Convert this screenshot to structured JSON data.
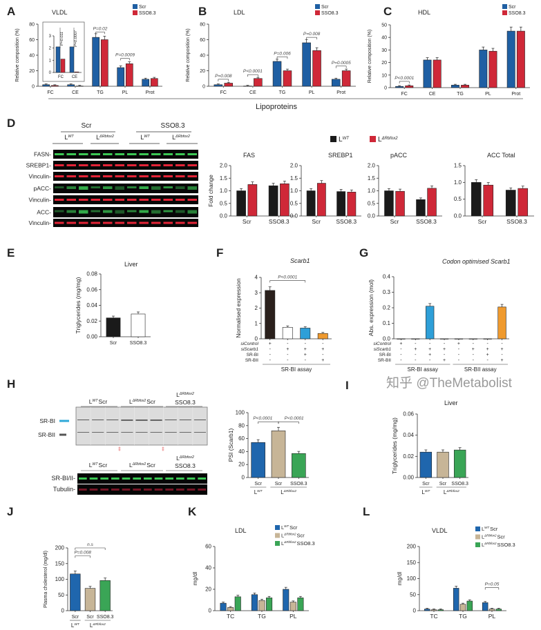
{
  "panel_letters": [
    "A",
    "B",
    "C",
    "D",
    "E",
    "F",
    "G",
    "H",
    "I",
    "J",
    "K",
    "L"
  ],
  "shared_xlabel": "Lipoproteins",
  "watermark": "知乎 @TheMetabolist",
  "colors": {
    "scr_blue": "#1f5fa3",
    "sso_red": "#cf2838",
    "black": "#1a1a1a",
    "white": "#ffffff",
    "tan": "#c7b597",
    "green": "#3aa556",
    "orange": "#ef9a2e",
    "light_blue": "#2e9fd8",
    "dark_brown": "#2a201c"
  },
  "chart_data": [
    {
      "id": "A",
      "type": "bar",
      "title": "VLDL",
      "ylabel": "Relative composition (%)",
      "ylim": [
        0,
        80
      ],
      "yticks": [
        0,
        20,
        40,
        60,
        80
      ],
      "categories": [
        "FC",
        "CE",
        "TG",
        "PL",
        "Prot"
      ],
      "series": [
        {
          "name": "Scr",
          "color": "#1f5fa3",
          "values": [
            2,
            2,
            63,
            24,
            9
          ]
        },
        {
          "name": "SSO8.3",
          "color": "#cf2838",
          "values": [
            1,
            0.3,
            60,
            29,
            10
          ]
        }
      ],
      "legend": "top-right",
      "annotations": [
        {
          "text": "P=0.02",
          "cat": [
            2,
            2
          ],
          "series": [
            0,
            1
          ],
          "y": 70
        },
        {
          "text": "P=0.0009",
          "cat": [
            3,
            3
          ],
          "series": [
            0,
            1
          ],
          "y": 36
        }
      ],
      "inset": {
        "ylim": [
          0,
          3
        ],
        "yticks": [
          0,
          1,
          2,
          3
        ],
        "categories": [
          "FC",
          "CE"
        ],
        "series": [
          {
            "name": "Scr",
            "color": "#1f5fa3",
            "values": [
              2.1,
              2.1
            ]
          },
          {
            "name": "SSO8.3",
            "color": "#cf2838",
            "values": [
              1.1,
              0.05
            ]
          }
        ],
        "annotations": [
          {
            "text": "P=0.011"
          },
          {
            "text": "P=0.0007"
          }
        ]
      }
    },
    {
      "id": "B",
      "type": "bar",
      "title": "LDL",
      "ylabel": "Relative composition (%)",
      "ylim": [
        0,
        80
      ],
      "yticks": [
        0,
        20,
        40,
        60,
        80
      ],
      "categories": [
        "FC",
        "CE",
        "TG",
        "PL",
        "Prot"
      ],
      "series": [
        {
          "name": "Scr",
          "color": "#1f5fa3",
          "values": [
            2,
            0.3,
            32,
            56,
            9
          ]
        },
        {
          "name": "SSO8.3",
          "color": "#cf2838",
          "values": [
            4,
            10,
            20,
            46,
            20
          ]
        }
      ],
      "legend": "top-right",
      "annotations": [
        {
          "text": "P=0.008",
          "cat": [
            0,
            0
          ],
          "series": [
            0,
            1
          ],
          "y": 9
        },
        {
          "text": "P<0.0001",
          "cat": [
            1,
            1
          ],
          "series": [
            0,
            1
          ],
          "y": 15
        },
        {
          "text": "P=0.006",
          "cat": [
            2,
            2
          ],
          "series": [
            0,
            1
          ],
          "y": 38
        },
        {
          "text": "P=0.008",
          "cat": [
            3,
            3
          ],
          "series": [
            0,
            1
          ],
          "y": 63
        },
        {
          "text": "P=0.0005",
          "cat": [
            4,
            4
          ],
          "series": [
            0,
            1
          ],
          "y": 26
        }
      ]
    },
    {
      "id": "C",
      "type": "bar",
      "title": "HDL",
      "ylabel": "Relative composition (%)",
      "ylim": [
        0,
        50
      ],
      "yticks": [
        0,
        10,
        20,
        30,
        40,
        50
      ],
      "categories": [
        "FC",
        "CE",
        "TG",
        "PL",
        "Prot"
      ],
      "series": [
        {
          "name": "Scr",
          "color": "#1f5fa3",
          "values": [
            1,
            22,
            2,
            30,
            45
          ]
        },
        {
          "name": "SSO8.3",
          "color": "#cf2838",
          "values": [
            1.5,
            22,
            2,
            29,
            45
          ]
        }
      ],
      "legend": "top-right",
      "annotations": [
        {
          "text": "P<0.0001",
          "cat": [
            0,
            0
          ],
          "series": [
            0,
            1
          ],
          "y": 5
        }
      ]
    },
    {
      "id": "D1",
      "type": "bar",
      "title": "FAS",
      "ylabel": "Fold change",
      "ylim": [
        0,
        2
      ],
      "yticks": [
        "0.0",
        "0.5",
        "1.0",
        "1.5",
        "2.0"
      ],
      "categories": [
        "Scr",
        "SSO8.3"
      ],
      "series": [
        {
          "name": {
            "base": "L",
            "sup": "WT"
          },
          "color": "#1a1a1a",
          "values": [
            1.0,
            1.2
          ]
        },
        {
          "name": {
            "base": "L",
            "sup": "ΔRbfox2"
          },
          "color": "#cf2838",
          "values": [
            1.25,
            1.28
          ]
        }
      ]
    },
    {
      "id": "D2",
      "type": "bar",
      "title": "SREBP1",
      "ylabel": "",
      "ylim": [
        0,
        2
      ],
      "yticks": [
        "0.0",
        "0.5",
        "1.0",
        "1.5",
        "2.0"
      ],
      "categories": [
        "Scr",
        "SSO8.3"
      ],
      "series": [
        {
          "color": "#1a1a1a",
          "values": [
            1.0,
            0.97
          ]
        },
        {
          "color": "#cf2838",
          "values": [
            1.3,
            0.95
          ]
        }
      ]
    },
    {
      "id": "D3",
      "type": "bar",
      "title": "pACC",
      "ylabel": "",
      "ylim": [
        0,
        2
      ],
      "yticks": [
        "0.0",
        "0.5",
        "1.0",
        "1.5",
        "2.0"
      ],
      "categories": [
        "Scr",
        "SSO8.3"
      ],
      "series": [
        {
          "color": "#1a1a1a",
          "values": [
            1.0,
            0.65
          ]
        },
        {
          "color": "#cf2838",
          "values": [
            0.98,
            1.1
          ]
        }
      ]
    },
    {
      "id": "D4",
      "type": "bar",
      "title": "ACC Total",
      "ylabel": "",
      "ylim": [
        0,
        1.5
      ],
      "yticks": [
        "0.0",
        "0.5",
        "1.0",
        "1.5"
      ],
      "categories": [
        "Scr",
        "SSO8.3"
      ],
      "series": [
        {
          "color": "#1a1a1a",
          "values": [
            1.0,
            0.77
          ]
        },
        {
          "color": "#cf2838",
          "values": [
            0.92,
            0.82
          ]
        }
      ]
    },
    {
      "id": "E",
      "type": "bar",
      "title": "Liver",
      "ylabel": "Triglycerides (mg/mg)",
      "ylim": [
        0,
        0.08
      ],
      "yticks": [
        "0.00",
        "0.02",
        "0.04",
        "0.06",
        "0.08"
      ],
      "categories": [
        "Scr",
        "SSO8.3"
      ],
      "series": [
        {
          "colors": [
            "#1a1a1a",
            "#ffffff"
          ],
          "values": [
            0.024,
            0.029
          ]
        }
      ]
    },
    {
      "id": "F",
      "type": "bar",
      "title": "Scarb1",
      "ylabel": "Normalised expression",
      "ylim": [
        0,
        4
      ],
      "yticks": [
        0,
        1,
        2,
        3,
        4
      ],
      "categories": [
        "",
        "",
        "",
        ""
      ],
      "series": [
        {
          "colors": [
            "#2a201c",
            "#ffffff",
            "#2e9fd8",
            "#ef9a2e"
          ],
          "values": [
            3.15,
            0.75,
            0.7,
            0.35
          ]
        }
      ],
      "annotations": [
        {
          "text": "P<0.0001",
          "cat": [
            0,
            2
          ],
          "series": [
            0,
            0
          ],
          "y": 3.8
        }
      ],
      "conditions": [
        {
          "label": "siControl",
          "signs": [
            "+",
            "-",
            "-",
            "-"
          ]
        },
        {
          "label": "siScarb1",
          "signs": [
            "-",
            "+",
            "+",
            "+"
          ]
        },
        {
          "label": "SR-BI",
          "signs": [
            "-",
            "-",
            "+",
            "-"
          ]
        },
        {
          "label": "SR-BII",
          "signs": [
            "-",
            "-",
            "-",
            "+"
          ]
        }
      ],
      "assays": [
        {
          "label": "SR-BI assay",
          "span": [
            0,
            3
          ]
        }
      ]
    },
    {
      "id": "G",
      "type": "bar",
      "title": "Codon optimised Scarb1",
      "ylabel": "Abs. expression (mol)",
      "ylim": [
        0,
        0.4
      ],
      "yticks": [
        "0.0",
        "0.1",
        "0.2",
        "0.3",
        "0.4"
      ],
      "categories": [
        "",
        "",
        "",
        "",
        "",
        "",
        "",
        ""
      ],
      "series": [
        {
          "colors": [
            "#ffffff",
            "#ffffff",
            "#2e9fd8",
            "#ffffff",
            "#ffffff",
            "#ffffff",
            "#ffffff",
            "#ef9a2e"
          ],
          "values": [
            0,
            0,
            0.21,
            0,
            0,
            0,
            0,
            0.205
          ]
        }
      ],
      "conditions": [
        {
          "label": "siControl",
          "signs": [
            "+",
            "-",
            "-",
            "-",
            "+",
            "-",
            "-",
            "-"
          ]
        },
        {
          "label": "siScarb1",
          "signs": [
            "-",
            "+",
            "+",
            "+",
            "-",
            "+",
            "+",
            "+"
          ]
        },
        {
          "label": "SR-BI",
          "signs": [
            "-",
            "-",
            "+",
            "-",
            "-",
            "-",
            "+",
            "-"
          ]
        },
        {
          "label": "SR-BII",
          "signs": [
            "-",
            "-",
            "-",
            "+",
            "-",
            "-",
            "-",
            "+"
          ]
        }
      ],
      "assays": [
        {
          "label": "SR-BI assay",
          "span": [
            0,
            3
          ]
        },
        {
          "label": "SR-BII assay",
          "span": [
            4,
            7
          ]
        }
      ]
    },
    {
      "id": "H",
      "type": "bar",
      "title": "",
      "ylabel": "PSI (Scarb1)",
      "ylim": [
        0,
        100
      ],
      "yticks": [
        0,
        20,
        40,
        60,
        80,
        100
      ],
      "categories": [
        "Scr",
        "Scr",
        "SSO8.3"
      ],
      "series": [
        {
          "colors": [
            "#1f66ad",
            "#c7b597",
            "#3aa556"
          ],
          "values": [
            54,
            72,
            37
          ]
        }
      ],
      "annotations": [
        {
          "text": "P<0.0001",
          "cat": [
            0,
            1
          ],
          "series": [
            0,
            0
          ],
          "y": 86
        },
        {
          "text": "P<0.0001",
          "cat": [
            1,
            2
          ],
          "series": [
            0,
            0
          ],
          "y": 86
        }
      ],
      "groups": [
        {
          "label": {
            "base": "L",
            "sup": "WT"
          },
          "span": [
            0,
            0
          ]
        },
        {
          "label": {
            "base": "L",
            "sup": "ΔRbfox2"
          },
          "span": [
            1,
            2
          ]
        }
      ]
    },
    {
      "id": "I",
      "type": "bar",
      "title": "Liver",
      "ylabel": "Triglycerides (mg/mg)",
      "ylim": [
        0,
        0.06
      ],
      "yticks": [
        "0.00",
        "0.02",
        "0.04",
        "0.06"
      ],
      "categories": [
        "Scr",
        "Scr",
        "SSO8.3"
      ],
      "series": [
        {
          "colors": [
            "#1f66ad",
            "#c7b597",
            "#3aa556"
          ],
          "values": [
            0.024,
            0.024,
            0.026
          ]
        }
      ],
      "groups": [
        {
          "label": {
            "base": "L",
            "sup": "WT"
          },
          "span": [
            0,
            0
          ]
        },
        {
          "label": {
            "base": "L",
            "sup": "ΔRbfox2"
          },
          "span": [
            1,
            2
          ]
        }
      ]
    },
    {
      "id": "J",
      "type": "bar",
      "title": "",
      "ylabel": "Plasma cholesterol (mg/dl)",
      "ylim": [
        0,
        200
      ],
      "yticks": [
        0,
        50,
        100,
        150,
        200
      ],
      "categories": [
        "Scr",
        "Scr",
        "SSO8.3"
      ],
      "series": [
        {
          "colors": [
            "#1f66ad",
            "#c7b597",
            "#3aa556"
          ],
          "values": [
            117,
            71,
            96
          ]
        }
      ],
      "annotations": [
        {
          "text": "P=0.008",
          "cat": [
            0,
            1
          ],
          "series": [
            0,
            0
          ],
          "y": 175
        },
        {
          "text": "n.s",
          "cat": [
            0,
            2
          ],
          "series": [
            0,
            0
          ],
          "y": 200
        }
      ],
      "groups": [
        {
          "label": {
            "base": "L",
            "sup": "WT"
          },
          "span": [
            0,
            0
          ]
        },
        {
          "label": {
            "base": "L",
            "sup": "ΔRbfox2"
          },
          "span": [
            1,
            2
          ]
        }
      ]
    },
    {
      "id": "K",
      "type": "bar",
      "title": "LDL",
      "ylabel": "mg/dl",
      "ylim": [
        0,
        60
      ],
      "yticks": [
        0,
        20,
        40,
        60
      ],
      "categories": [
        "TC",
        "TG",
        "PL"
      ],
      "series": [
        {
          "name": {
            "base": "L",
            "sup": "WT",
            "tail": "Scr"
          },
          "color": "#1f66ad",
          "values": [
            7,
            15,
            20
          ]
        },
        {
          "name": {
            "base": "L",
            "sup": "ΔRbfox2",
            "tail": "Scr"
          },
          "color": "#c7b597",
          "values": [
            3,
            9.5,
            8
          ]
        },
        {
          "name": {
            "base": "L",
            "sup": "ΔRbfox2",
            "tail": "SSO8.3"
          },
          "color": "#3aa556",
          "values": [
            13,
            12,
            12
          ]
        }
      ],
      "legend": "top-right"
    },
    {
      "id": "L",
      "type": "bar",
      "title": "VLDL",
      "ylabel": "mg/dl",
      "ylim": [
        0,
        200
      ],
      "yticks": [
        0,
        50,
        100,
        150,
        200
      ],
      "categories": [
        "TC",
        "TG",
        "PL"
      ],
      "series": [
        {
          "name": {
            "base": "L",
            "sup": "WT",
            "tail": "Scr"
          },
          "color": "#1f66ad",
          "values": [
            5,
            70,
            25
          ]
        },
        {
          "name": {
            "base": "L",
            "sup": "ΔRbfox2",
            "tail": "Scr"
          },
          "color": "#c7b597",
          "values": [
            3,
            20,
            5
          ]
        },
        {
          "name": {
            "base": "L",
            "sup": "ΔRbfox2",
            "tail": "SSO8.3"
          },
          "color": "#3aa556",
          "values": [
            3,
            30,
            5
          ]
        }
      ],
      "annotations": [
        {
          "text": "P=0.05",
          "cat": [
            2,
            2
          ],
          "series": [
            0,
            2
          ],
          "y": 72
        }
      ],
      "legend": "top-right"
    }
  ],
  "blot_d": {
    "groups": [
      "Scr",
      "SSO8.3"
    ],
    "subgroups": [
      {
        "base": "L",
        "sup": "WT"
      },
      {
        "base": "L",
        "sup": "ΔRbfox2"
      },
      {
        "base": "L",
        "sup": "WT"
      },
      {
        "base": "L",
        "sup": "ΔRbfox2"
      }
    ],
    "rows": [
      {
        "label": "FASN-",
        "color": "#3fd35a"
      },
      {
        "label": "SREBP1-",
        "color": "#f0263a"
      },
      {
        "label": "Vinculin-",
        "color": "#f0263a"
      },
      {
        "label": "pACC-",
        "color": "#3fd35a"
      },
      {
        "label": "Vinculin-",
        "color": "#f0263a"
      },
      {
        "label": "ACC-",
        "color": "#3fd35a"
      },
      {
        "label": "Vinculin-",
        "color": "#f0263a"
      }
    ]
  },
  "gel_h": {
    "groups": [
      {
        "base": "L",
        "sup": "WT",
        "tail": "Scr"
      },
      {
        "base": "L",
        "sup": "ΔRbfox2",
        "tail": "Scr"
      },
      {
        "base": "L",
        "sup": "ΔRbfox2",
        "tail": "SSO8.3"
      }
    ],
    "markers": [
      {
        "label": "SR-BI",
        "color": "#2fa8d8"
      },
      {
        "label": "SR-BII",
        "color": "#555555"
      }
    ]
  },
  "blot_h": {
    "groups": [
      {
        "base": "L",
        "sup": "WT",
        "tail": "Scr"
      },
      {
        "base": "L",
        "sup": "ΔRbfox2",
        "tail": "Scr"
      },
      {
        "base": "L",
        "sup": "ΔRbfox2",
        "tail": "SSO8.3"
      }
    ],
    "rows": [
      {
        "label": "SR-BI/II-",
        "color": "#3fd35a"
      },
      {
        "label": "Tubulin-",
        "color": "#c0203a"
      }
    ]
  }
}
